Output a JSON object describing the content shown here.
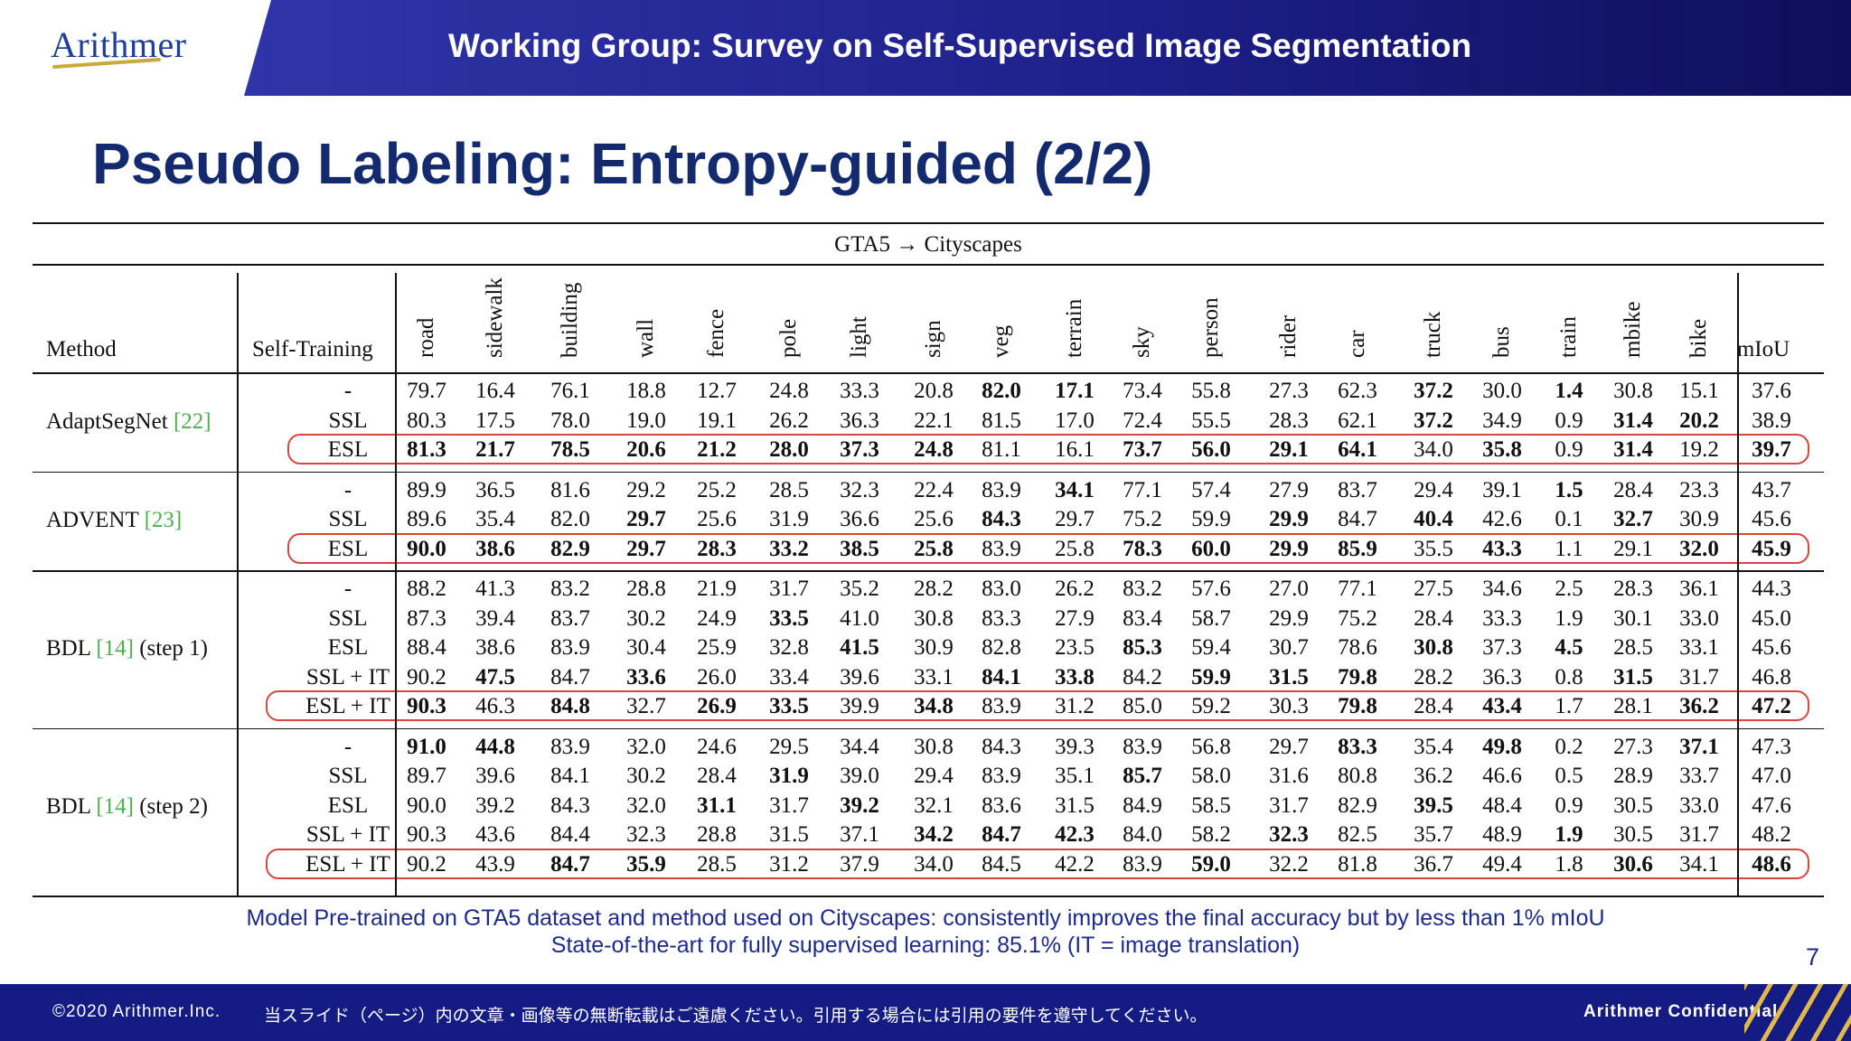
{
  "header": {
    "logo": "Arithmer",
    "title": "Working Group: Survey on Self-Supervised Image Segmentation"
  },
  "slide_title": "Pseudo Labeling: Entropy-guided (2/2)",
  "table": {
    "caption": "GTA5 → Cityscapes",
    "method_header": "Method",
    "st_header": "Self-Training",
    "class_headers": [
      "road",
      "sidewalk",
      "building",
      "wall",
      "fence",
      "pole",
      "light",
      "sign",
      "veg",
      "terrain",
      "sky",
      "person",
      "rider",
      "car",
      "truck",
      "bus",
      "train",
      "mbike",
      "bike"
    ],
    "miou_header": "mIoU",
    "groups": [
      {
        "method": "AdaptSegNet ",
        "cite": "[22]",
        "rows": [
          {
            "st": "-",
            "values": [
              "79.7",
              "16.4",
              "76.1",
              "18.8",
              "12.7",
              "24.8",
              "33.3",
              "20.8",
              "82.0",
              "17.1",
              "73.4",
              "55.8",
              "27.3",
              "62.3",
              "37.2",
              "30.0",
              "1.4",
              "30.8",
              "15.1",
              "37.6"
            ],
            "bold": [
              8,
              9,
              14,
              16
            ]
          },
          {
            "st": "SSL",
            "values": [
              "80.3",
              "17.5",
              "78.0",
              "19.0",
              "19.1",
              "26.2",
              "36.3",
              "22.1",
              "81.5",
              "17.0",
              "72.4",
              "55.5",
              "28.3",
              "62.1",
              "37.2",
              "34.9",
              "0.9",
              "31.4",
              "20.2",
              "38.9"
            ],
            "bold": [
              14,
              17,
              18
            ]
          },
          {
            "st": "ESL",
            "values": [
              "81.3",
              "21.7",
              "78.5",
              "20.6",
              "21.2",
              "28.0",
              "37.3",
              "24.8",
              "81.1",
              "16.1",
              "73.7",
              "56.0",
              "29.1",
              "64.1",
              "34.0",
              "35.8",
              "0.9",
              "31.4",
              "19.2",
              "39.7"
            ],
            "bold": [
              0,
              1,
              2,
              3,
              4,
              5,
              6,
              7,
              10,
              11,
              12,
              13,
              15,
              17,
              19
            ],
            "highlight": true
          }
        ]
      },
      {
        "method": "ADVENT ",
        "cite": "[23]",
        "rows": [
          {
            "st": "-",
            "values": [
              "89.9",
              "36.5",
              "81.6",
              "29.2",
              "25.2",
              "28.5",
              "32.3",
              "22.4",
              "83.9",
              "34.1",
              "77.1",
              "57.4",
              "27.9",
              "83.7",
              "29.4",
              "39.1",
              "1.5",
              "28.4",
              "23.3",
              "43.7"
            ],
            "bold": [
              9,
              16
            ]
          },
          {
            "st": "SSL",
            "values": [
              "89.6",
              "35.4",
              "82.0",
              "29.7",
              "25.6",
              "31.9",
              "36.6",
              "25.6",
              "84.3",
              "29.7",
              "75.2",
              "59.9",
              "29.9",
              "84.7",
              "40.4",
              "42.6",
              "0.1",
              "32.7",
              "30.9",
              "45.6"
            ],
            "bold": [
              3,
              8,
              12,
              14,
              17
            ]
          },
          {
            "st": "ESL",
            "values": [
              "90.0",
              "38.6",
              "82.9",
              "29.7",
              "28.3",
              "33.2",
              "38.5",
              "25.8",
              "83.9",
              "25.8",
              "78.3",
              "60.0",
              "29.9",
              "85.9",
              "35.5",
              "43.3",
              "1.1",
              "29.1",
              "32.0",
              "45.9"
            ],
            "bold": [
              0,
              1,
              2,
              3,
              4,
              5,
              6,
              7,
              10,
              11,
              12,
              13,
              15,
              18,
              19
            ],
            "highlight": true
          }
        ]
      },
      {
        "method": "BDL ",
        "cite": "[14]",
        "method_suffix": " (step 1)",
        "rows": [
          {
            "st": "-",
            "values": [
              "88.2",
              "41.3",
              "83.2",
              "28.8",
              "21.9",
              "31.7",
              "35.2",
              "28.2",
              "83.0",
              "26.2",
              "83.2",
              "57.6",
              "27.0",
              "77.1",
              "27.5",
              "34.6",
              "2.5",
              "28.3",
              "36.1",
              "44.3"
            ],
            "bold": []
          },
          {
            "st": "SSL",
            "values": [
              "87.3",
              "39.4",
              "83.7",
              "30.2",
              "24.9",
              "33.5",
              "41.0",
              "30.8",
              "83.3",
              "27.9",
              "83.4",
              "58.7",
              "29.9",
              "75.2",
              "28.4",
              "33.3",
              "1.9",
              "30.1",
              "33.0",
              "45.0"
            ],
            "bold": [
              5
            ]
          },
          {
            "st": "ESL",
            "values": [
              "88.4",
              "38.6",
              "83.9",
              "30.4",
              "25.9",
              "32.8",
              "41.5",
              "30.9",
              "82.8",
              "23.5",
              "85.3",
              "59.4",
              "30.7",
              "78.6",
              "30.8",
              "37.3",
              "4.5",
              "28.5",
              "33.1",
              "45.6"
            ],
            "bold": [
              6,
              10,
              14,
              16
            ]
          },
          {
            "st": "SSL + IT",
            "values": [
              "90.2",
              "47.5",
              "84.7",
              "33.6",
              "26.0",
              "33.4",
              "39.6",
              "33.1",
              "84.1",
              "33.8",
              "84.2",
              "59.9",
              "31.5",
              "79.8",
              "28.2",
              "36.3",
              "0.8",
              "31.5",
              "31.7",
              "46.8"
            ],
            "bold": [
              1,
              3,
              8,
              9,
              11,
              12,
              13,
              17
            ]
          },
          {
            "st": "ESL + IT",
            "values": [
              "90.3",
              "46.3",
              "84.8",
              "32.7",
              "26.9",
              "33.5",
              "39.9",
              "34.8",
              "83.9",
              "31.2",
              "85.0",
              "59.2",
              "30.3",
              "79.8",
              "28.4",
              "43.4",
              "1.7",
              "28.1",
              "36.2",
              "47.2"
            ],
            "bold": [
              0,
              2,
              4,
              5,
              7,
              13,
              15,
              18,
              19
            ],
            "highlight": true
          }
        ]
      },
      {
        "method": "BDL ",
        "cite": "[14]",
        "method_suffix": " (step 2)",
        "rows": [
          {
            "st": "-",
            "values": [
              "91.0",
              "44.8",
              "83.9",
              "32.0",
              "24.6",
              "29.5",
              "34.4",
              "30.8",
              "84.3",
              "39.3",
              "83.9",
              "56.8",
              "29.7",
              "83.3",
              "35.4",
              "49.8",
              "0.2",
              "27.3",
              "37.1",
              "47.3"
            ],
            "bold": [
              0,
              1,
              13,
              15,
              18
            ]
          },
          {
            "st": "SSL",
            "values": [
              "89.7",
              "39.6",
              "84.1",
              "30.2",
              "28.4",
              "31.9",
              "39.0",
              "29.4",
              "83.9",
              "35.1",
              "85.7",
              "58.0",
              "31.6",
              "80.8",
              "36.2",
              "46.6",
              "0.5",
              "28.9",
              "33.7",
              "47.0"
            ],
            "bold": [
              5,
              10
            ]
          },
          {
            "st": "ESL",
            "values": [
              "90.0",
              "39.2",
              "84.3",
              "32.0",
              "31.1",
              "31.7",
              "39.2",
              "32.1",
              "83.6",
              "31.5",
              "84.9",
              "58.5",
              "31.7",
              "82.9",
              "39.5",
              "48.4",
              "0.9",
              "30.5",
              "33.0",
              "47.6"
            ],
            "bold": [
              4,
              6,
              14
            ]
          },
          {
            "st": "SSL + IT",
            "values": [
              "90.3",
              "43.6",
              "84.4",
              "32.3",
              "28.8",
              "31.5",
              "37.1",
              "34.2",
              "84.7",
              "42.3",
              "84.0",
              "58.2",
              "32.3",
              "82.5",
              "35.7",
              "48.9",
              "1.9",
              "30.5",
              "31.7",
              "48.2"
            ],
            "bold": [
              7,
              8,
              9,
              12,
              16
            ]
          },
          {
            "st": "ESL + IT",
            "values": [
              "90.2",
              "43.9",
              "84.7",
              "35.9",
              "28.5",
              "31.2",
              "37.9",
              "34.0",
              "84.5",
              "42.2",
              "83.9",
              "59.0",
              "32.2",
              "81.8",
              "36.7",
              "49.4",
              "1.8",
              "30.6",
              "34.1",
              "48.6"
            ],
            "bold": [
              2,
              3,
              11,
              17,
              19
            ],
            "highlight": true
          }
        ]
      }
    ]
  },
  "notes": [
    "Model Pre-trained on GTA5 dataset and method used on Cityscapes: consistently improves the final accuracy but by less than 1% mIoU",
    "State-of-the-art for fully supervised learning: 85.1% (IT = image translation)"
  ],
  "page_number": "7",
  "footer": {
    "copyright": "©2020 Arithmer.Inc.",
    "notice": "当スライド（ページ）内の文章・画像等の無断転載はご遠慮ください。引用する場合には引用の要件を遵守してください。",
    "confidential": "Arithmer Confidential"
  },
  "colors": {
    "header_band": "#1e1f8a",
    "title": "#142a6e",
    "caption": "#1b2a8c",
    "highlight": "#d9453d",
    "cite": "#4caf50",
    "footer": "#141b82"
  }
}
